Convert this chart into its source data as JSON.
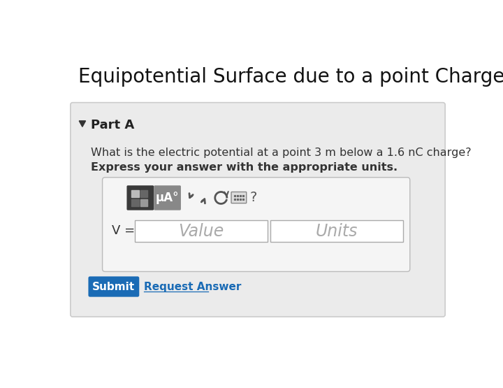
{
  "title": "Equipotential Surface due to a point Charge",
  "title_fontsize": 20,
  "bg_color": "#ffffff",
  "card_border": "#cccccc",
  "part_label": "Part A",
  "question_line1": "What is the electric potential at a point 3 m below a 1.6 nC charge?",
  "question_line2": "Express your answer with the appropriate units.",
  "mu_label": "μA°",
  "value_placeholder": "Value",
  "units_placeholder": "Units",
  "submit_bg": "#1a6bb5",
  "submit_text": "Submit",
  "request_text": "Request Answer",
  "v_label": "V =",
  "question_mark": "?"
}
